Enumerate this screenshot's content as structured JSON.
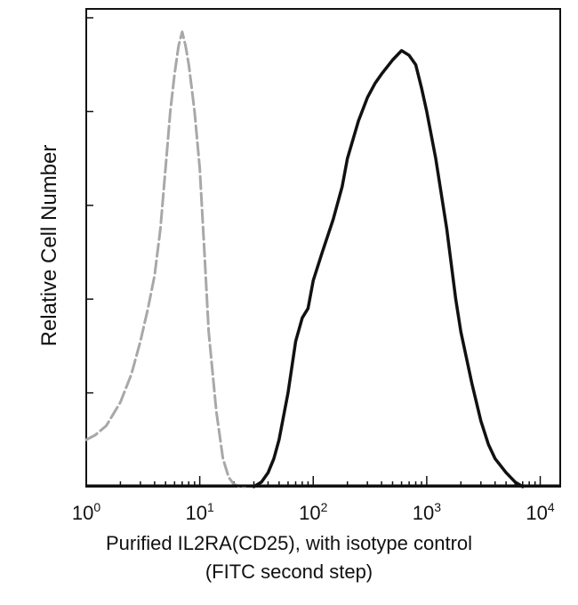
{
  "chart_data": {
    "type": "line",
    "title": "",
    "xlabel_line1": "Purified IL2RA(CD25), with isotype control",
    "xlabel_line2": "(FITC second step)",
    "ylabel": "Relative Cell Number",
    "x_scale": "log",
    "xlim": [
      1,
      15000
    ],
    "ylim": [
      0,
      1
    ],
    "x_ticks": [
      {
        "value": 1,
        "base": "10",
        "exp": "0"
      },
      {
        "value": 10,
        "base": "10",
        "exp": "1"
      },
      {
        "value": 100,
        "base": "10",
        "exp": "2"
      },
      {
        "value": 1000,
        "base": "10",
        "exp": "3"
      },
      {
        "value": 10000,
        "base": "10",
        "exp": "4"
      }
    ],
    "grid": false,
    "series": [
      {
        "color": "#a8a8a8",
        "style": "dashed",
        "x": [
          1,
          1.2,
          1.5,
          2,
          2.5,
          3,
          3.5,
          4,
          4.5,
          5,
          5.5,
          6,
          6.5,
          7,
          7.5,
          8,
          8.5,
          9,
          10,
          11,
          12,
          14,
          16,
          18,
          20,
          22,
          25
        ],
        "y": [
          0.1,
          0.11,
          0.13,
          0.18,
          0.24,
          0.31,
          0.38,
          0.45,
          0.55,
          0.68,
          0.8,
          0.88,
          0.94,
          0.97,
          0.94,
          0.9,
          0.85,
          0.8,
          0.68,
          0.5,
          0.33,
          0.16,
          0.06,
          0.02,
          0.005,
          0.001,
          0
        ]
      },
      {
        "color": "#111111",
        "style": "solid",
        "x": [
          30,
          35,
          40,
          45,
          50,
          60,
          70,
          80,
          90,
          100,
          120,
          150,
          180,
          200,
          250,
          300,
          350,
          400,
          500,
          600,
          700,
          800,
          900,
          1000,
          1200,
          1500,
          1800,
          2000,
          2500,
          3000,
          3500,
          4000,
          5000,
          6000,
          7000
        ],
        "y": [
          0.0,
          0.01,
          0.03,
          0.06,
          0.1,
          0.2,
          0.31,
          0.36,
          0.38,
          0.44,
          0.5,
          0.57,
          0.64,
          0.7,
          0.78,
          0.83,
          0.86,
          0.88,
          0.91,
          0.93,
          0.92,
          0.9,
          0.85,
          0.8,
          0.7,
          0.55,
          0.4,
          0.33,
          0.22,
          0.14,
          0.09,
          0.06,
          0.03,
          0.01,
          0.0
        ]
      }
    ]
  }
}
